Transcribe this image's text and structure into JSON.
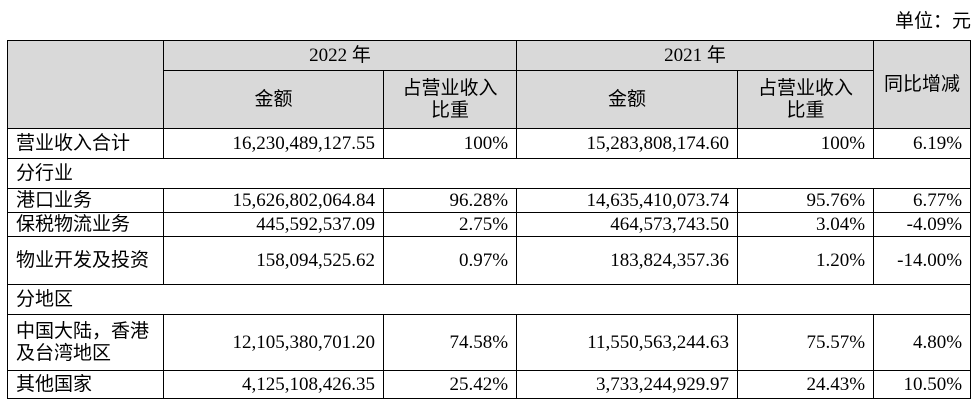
{
  "unit_label": "单位：元",
  "header": {
    "year1": "2022 年",
    "year2": "2021 年",
    "amount": "金额",
    "share_line1": "占营业收入",
    "share_line2": "比重",
    "yoy": "同比增减"
  },
  "total": {
    "label": "营业收入合计",
    "amount_2022": "16,230,489,127.55",
    "share_2022": "100%",
    "amount_2021": "15,283,808,174.60",
    "share_2021": "100%",
    "yoy": "6.19%"
  },
  "sections": [
    {
      "title": "分行业",
      "rows": [
        {
          "label": "港口业务",
          "amount_2022": "15,626,802,064.84",
          "share_2022": "96.28%",
          "amount_2021": "14,635,410,073.74",
          "share_2021": "95.76%",
          "yoy": "6.77%"
        },
        {
          "label": "保税物流业务",
          "amount_2022": "445,592,537.09",
          "share_2022": "2.75%",
          "amount_2021": "464,573,743.50",
          "share_2021": "3.04%",
          "yoy": "-4.09%"
        },
        {
          "label": "物业开发及投资",
          "amount_2022": "158,094,525.62",
          "share_2022": "0.97%",
          "amount_2021": "183,824,357.36",
          "share_2021": "1.20%",
          "yoy": "-14.00%"
        }
      ]
    },
    {
      "title": "分地区",
      "rows": [
        {
          "label": "中国大陆，香港及台湾地区",
          "amount_2022": "12,105,380,701.20",
          "share_2022": "74.58%",
          "amount_2021": "11,550,563,244.63",
          "share_2021": "75.57%",
          "yoy": "4.80%"
        },
        {
          "label": "其他国家",
          "amount_2022": "4,125,108,426.35",
          "share_2022": "25.42%",
          "amount_2021": "3,733,244,929.97",
          "share_2021": "24.43%",
          "yoy": "10.50%"
        }
      ]
    }
  ]
}
